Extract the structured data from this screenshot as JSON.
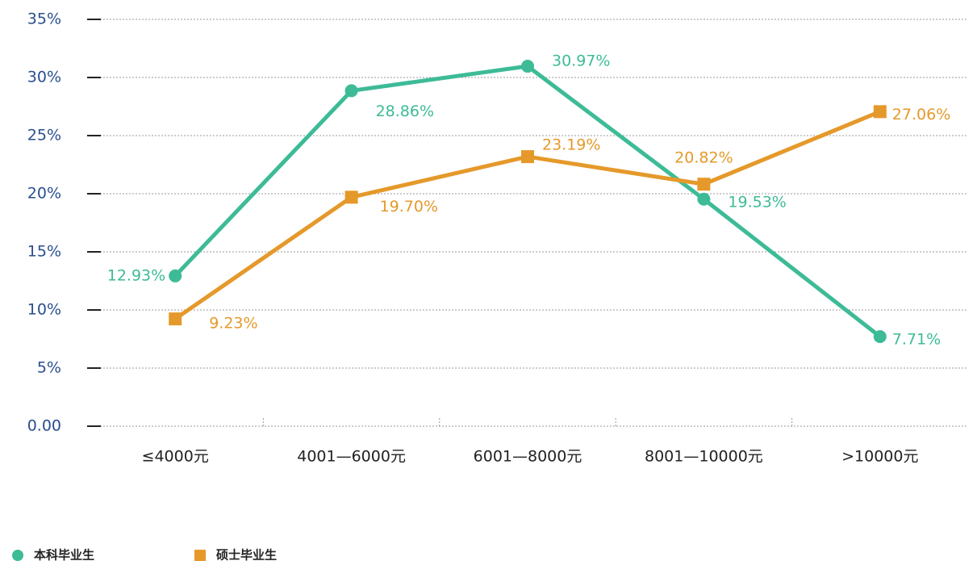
{
  "chart_data": {
    "type": "line",
    "categories": [
      "≤4000元",
      "4001—6000元",
      "6001—8000元",
      "8001—10000元",
      ">10000元"
    ],
    "series": [
      {
        "name": "本科毕业生",
        "color": "#3dbb97",
        "marker": "circle",
        "values": [
          12.93,
          28.86,
          30.97,
          19.53,
          7.71
        ],
        "value_labels": [
          "12.93%",
          "28.86%",
          "30.97%",
          "19.53%",
          "7.71%"
        ]
      },
      {
        "name": "硕士毕业生",
        "color": "#e5992a",
        "marker": "square",
        "values": [
          9.23,
          19.7,
          23.19,
          20.82,
          27.06
        ],
        "value_labels": [
          "9.23%",
          "19.70%",
          "23.19%",
          "20.82%",
          "27.06%"
        ]
      }
    ],
    "ylim": [
      0,
      35
    ],
    "yticks": [
      {
        "value": 0,
        "label": "0.00"
      },
      {
        "value": 5,
        "label": "5%"
      },
      {
        "value": 10,
        "label": "10%"
      },
      {
        "value": 15,
        "label": "15%"
      },
      {
        "value": 20,
        "label": "20%"
      },
      {
        "value": 25,
        "label": "25%"
      },
      {
        "value": 30,
        "label": "30%"
      },
      {
        "value": 35,
        "label": "35%"
      }
    ],
    "grid": true,
    "legend": "bottom-left"
  }
}
